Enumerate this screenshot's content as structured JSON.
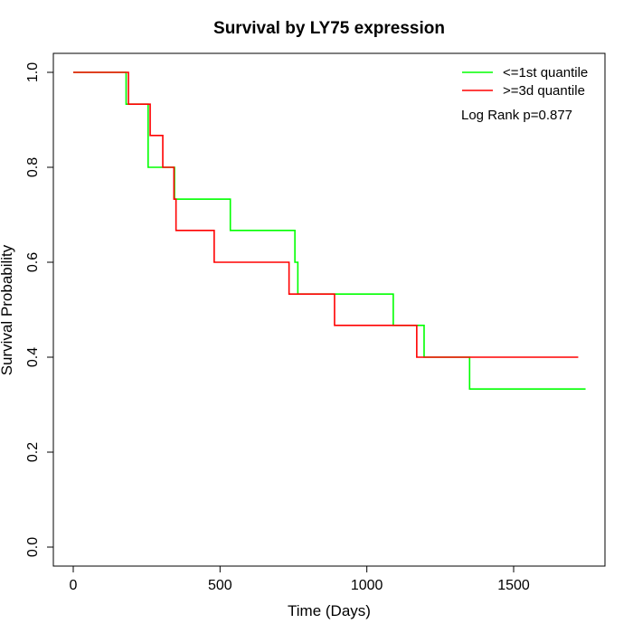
{
  "chart_data": {
    "type": "line",
    "title": "Survival by LY75 expression",
    "xlabel": "Time (Days)",
    "ylabel": "Survival Probability",
    "xlim": [
      0,
      1750
    ],
    "ylim": [
      0,
      1.0
    ],
    "x_ticks": [
      0,
      500,
      1000,
      1500
    ],
    "y_ticks": [
      0.0,
      0.2,
      0.4,
      0.6,
      0.8,
      1.0
    ],
    "x_tick_labels": [
      "0",
      "500",
      "1000",
      "1500"
    ],
    "y_tick_labels": [
      "0.0",
      "0.2",
      "0.4",
      "0.6",
      "0.8",
      "1.0"
    ],
    "grid": false,
    "legend_position": "top-right",
    "annotation": "Log Rank p=0.877",
    "series": [
      {
        "name": "<=1st quantile",
        "color": "#00ff00",
        "step": "post",
        "x": [
          0,
          180,
          255,
          345,
          535,
          755,
          765,
          1090,
          1195,
          1350,
          1745
        ],
        "y": [
          1.0,
          0.933,
          0.8,
          0.733,
          0.667,
          0.6,
          0.533,
          0.467,
          0.4,
          0.333,
          0.333
        ]
      },
      {
        "name": ">=3d quantile",
        "color": "#ff0000",
        "step": "post",
        "x": [
          0,
          188,
          262,
          305,
          343,
          350,
          480,
          735,
          890,
          1170,
          1720
        ],
        "y": [
          1.0,
          0.933,
          0.867,
          0.8,
          0.733,
          0.667,
          0.6,
          0.533,
          0.467,
          0.4,
          0.4
        ]
      }
    ]
  }
}
